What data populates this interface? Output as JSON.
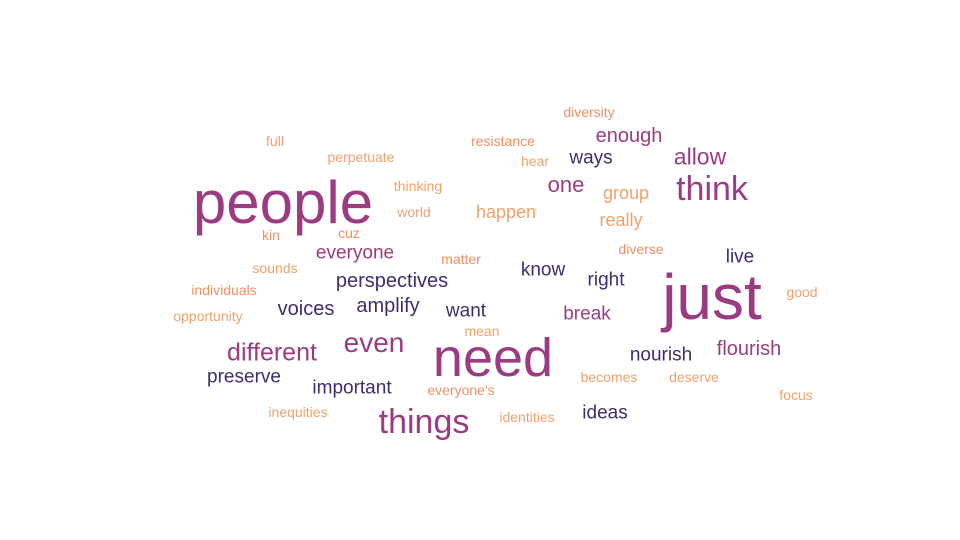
{
  "colors": {
    "magenta": "#9b3c82",
    "plum": "#a6428a",
    "navy": "#3f2d6e",
    "orange": "#f2a16a",
    "salmon": "#ee8f66"
  },
  "words": [
    {
      "text": "people",
      "color": "#9b3c82"
    },
    {
      "text": "just",
      "color": "#9b3c82"
    },
    {
      "text": "need",
      "color": "#9b3c82"
    },
    {
      "text": "think",
      "color": "#9b3c82"
    },
    {
      "text": "things",
      "color": "#9b3c82"
    },
    {
      "text": "even",
      "color": "#9b3c82"
    },
    {
      "text": "different",
      "color": "#9b3c82"
    },
    {
      "text": "allow",
      "color": "#9b3c82"
    },
    {
      "text": "one",
      "color": "#9b3c82"
    },
    {
      "text": "enough",
      "color": "#9b3c82"
    },
    {
      "text": "flourish",
      "color": "#9b3c82"
    },
    {
      "text": "break",
      "color": "#9b3c82"
    },
    {
      "text": "everyone",
      "color": "#9b3c82"
    },
    {
      "text": "ways",
      "color": "#3f2d6e"
    },
    {
      "text": "perspectives",
      "color": "#3f2d6e"
    },
    {
      "text": "voices",
      "color": "#3f2d6e"
    },
    {
      "text": "amplify",
      "color": "#3f2d6e"
    },
    {
      "text": "want",
      "color": "#3f2d6e"
    },
    {
      "text": "know",
      "color": "#3f2d6e"
    },
    {
      "text": "right",
      "color": "#3f2d6e"
    },
    {
      "text": "live",
      "color": "#3f2d6e"
    },
    {
      "text": "nourish",
      "color": "#3f2d6e"
    },
    {
      "text": "preserve",
      "color": "#3f2d6e"
    },
    {
      "text": "important",
      "color": "#3f2d6e"
    },
    {
      "text": "ideas",
      "color": "#3f2d6e"
    },
    {
      "text": "happen",
      "color": "#f2a16a"
    },
    {
      "text": "group",
      "color": "#f2a16a"
    },
    {
      "text": "really",
      "color": "#f2a16a"
    },
    {
      "text": "diversity",
      "color": "#ee8f66"
    },
    {
      "text": "resistance",
      "color": "#ee8f66"
    },
    {
      "text": "full",
      "color": "#f2a16a"
    },
    {
      "text": "perpetuate",
      "color": "#f2a16a"
    },
    {
      "text": "hear",
      "color": "#f2a16a"
    },
    {
      "text": "thinking",
      "color": "#f2a16a"
    },
    {
      "text": "world",
      "color": "#f2a16a"
    },
    {
      "text": "kin",
      "color": "#ee8f66"
    },
    {
      "text": "cuz",
      "color": "#ee8f66"
    },
    {
      "text": "matter",
      "color": "#ee8f66"
    },
    {
      "text": "diverse",
      "color": "#ee8f66"
    },
    {
      "text": "sounds",
      "color": "#f2a16a"
    },
    {
      "text": "individuals",
      "color": "#ee8f66"
    },
    {
      "text": "opportunity",
      "color": "#f2a16a"
    },
    {
      "text": "good",
      "color": "#f2a16a"
    },
    {
      "text": "mean",
      "color": "#f2a16a"
    },
    {
      "text": "becomes",
      "color": "#f2a16a"
    },
    {
      "text": "deserve",
      "color": "#f2a16a"
    },
    {
      "text": "everyone's",
      "color": "#ee8f66"
    },
    {
      "text": "focus",
      "color": "#f2a16a"
    },
    {
      "text": "inequities",
      "color": "#f2a16a"
    },
    {
      "text": "identities",
      "color": "#f2a16a"
    }
  ]
}
